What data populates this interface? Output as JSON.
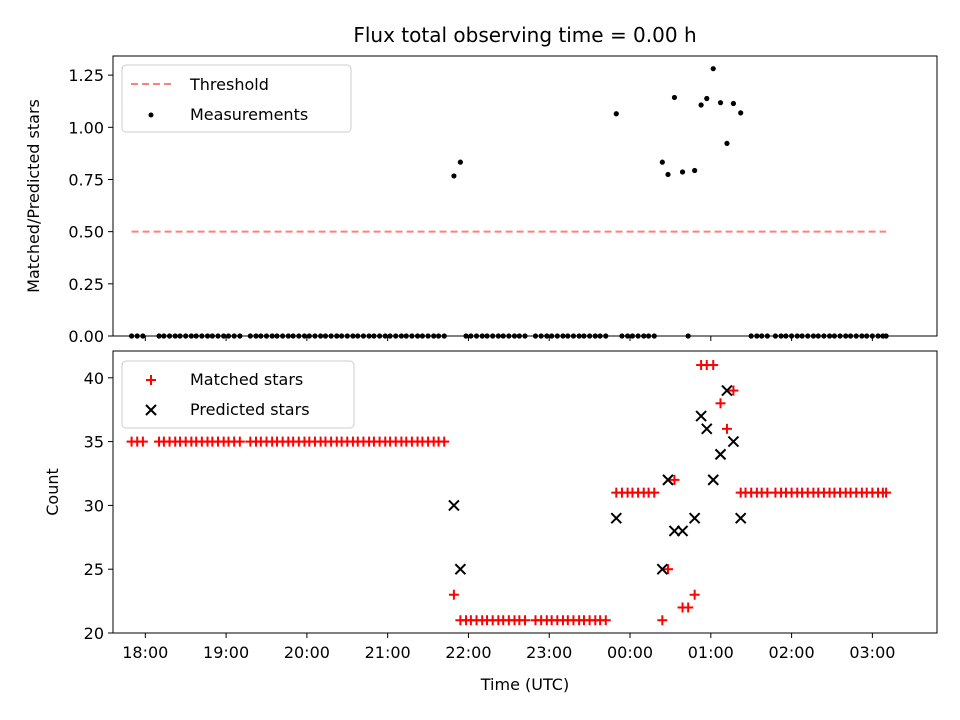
{
  "chart_data": [
    {
      "type": "line+scatter",
      "title": "Flux total observing time = 0.00 h",
      "ylabel": "Matched/Predicted stars",
      "xlabel": "",
      "xlim": [
        17.6,
        27.8
      ],
      "ylim": [
        0.0,
        1.3417
      ],
      "yticks": [
        0.0,
        0.25,
        0.5,
        0.75,
        1.0,
        1.25
      ],
      "ytick_labels": [
        "0.00",
        "0.25",
        "0.50",
        "0.75",
        "1.00",
        "1.25"
      ],
      "xticks": [
        18,
        19,
        20,
        21,
        22,
        23,
        24,
        25,
        26,
        27
      ],
      "legend_position": "upper-left",
      "threshold": {
        "name": "Threshold",
        "color": "#ff7f7f",
        "x": [
          17.83,
          27.17
        ],
        "y": [
          0.5,
          0.5
        ]
      },
      "measurements": {
        "name": "Measurements",
        "color": "#000000",
        "points": [
          [
            17.83,
            0
          ],
          [
            17.9,
            0
          ],
          [
            17.97,
            0
          ],
          [
            18.17,
            0
          ],
          [
            18.23,
            0
          ],
          [
            18.3,
            0
          ],
          [
            18.37,
            0
          ],
          [
            18.43,
            0
          ],
          [
            18.5,
            0
          ],
          [
            18.57,
            0
          ],
          [
            18.63,
            0
          ],
          [
            18.7,
            0
          ],
          [
            18.77,
            0
          ],
          [
            18.83,
            0
          ],
          [
            18.9,
            0
          ],
          [
            18.97,
            0
          ],
          [
            19.03,
            0
          ],
          [
            19.1,
            0
          ],
          [
            19.17,
            0
          ],
          [
            19.3,
            0
          ],
          [
            19.37,
            0
          ],
          [
            19.43,
            0
          ],
          [
            19.5,
            0
          ],
          [
            19.57,
            0
          ],
          [
            19.63,
            0
          ],
          [
            19.7,
            0
          ],
          [
            19.77,
            0
          ],
          [
            19.83,
            0
          ],
          [
            19.9,
            0
          ],
          [
            19.97,
            0
          ],
          [
            20.03,
            0
          ],
          [
            20.1,
            0
          ],
          [
            20.17,
            0
          ],
          [
            20.23,
            0
          ],
          [
            20.3,
            0
          ],
          [
            20.37,
            0
          ],
          [
            20.43,
            0
          ],
          [
            20.5,
            0
          ],
          [
            20.57,
            0
          ],
          [
            20.63,
            0
          ],
          [
            20.7,
            0
          ],
          [
            20.77,
            0
          ],
          [
            20.83,
            0
          ],
          [
            20.9,
            0
          ],
          [
            20.97,
            0
          ],
          [
            21.03,
            0
          ],
          [
            21.1,
            0
          ],
          [
            21.17,
            0
          ],
          [
            21.23,
            0
          ],
          [
            21.3,
            0
          ],
          [
            21.37,
            0
          ],
          [
            21.43,
            0
          ],
          [
            21.5,
            0
          ],
          [
            21.57,
            0
          ],
          [
            21.63,
            0
          ],
          [
            21.7,
            0
          ],
          [
            21.82,
            0.767
          ],
          [
            21.9,
            0.833
          ],
          [
            21.97,
            0
          ],
          [
            22.03,
            0
          ],
          [
            22.1,
            0
          ],
          [
            22.17,
            0
          ],
          [
            22.23,
            0
          ],
          [
            22.3,
            0
          ],
          [
            22.37,
            0
          ],
          [
            22.43,
            0
          ],
          [
            22.5,
            0
          ],
          [
            22.57,
            0
          ],
          [
            22.63,
            0
          ],
          [
            22.7,
            0
          ],
          [
            22.83,
            0
          ],
          [
            22.9,
            0
          ],
          [
            22.97,
            0
          ],
          [
            23.03,
            0
          ],
          [
            23.1,
            0
          ],
          [
            23.17,
            0
          ],
          [
            23.23,
            0
          ],
          [
            23.3,
            0
          ],
          [
            23.37,
            0
          ],
          [
            23.43,
            0
          ],
          [
            23.5,
            0
          ],
          [
            23.57,
            0
          ],
          [
            23.63,
            0
          ],
          [
            23.7,
            0
          ],
          [
            23.83,
            1.065
          ],
          [
            23.9,
            0
          ],
          [
            23.97,
            0
          ],
          [
            24.03,
            0
          ],
          [
            24.1,
            0
          ],
          [
            24.17,
            0
          ],
          [
            24.23,
            0
          ],
          [
            24.3,
            0
          ],
          [
            24.4,
            0.833
          ],
          [
            24.47,
            0.774
          ],
          [
            24.55,
            1.143
          ],
          [
            24.65,
            0.786
          ],
          [
            24.72,
            0
          ],
          [
            24.8,
            0.793
          ],
          [
            24.88,
            1.107
          ],
          [
            24.95,
            1.138
          ],
          [
            25.03,
            1.281
          ],
          [
            25.12,
            1.118
          ],
          [
            25.2,
            0.923
          ],
          [
            25.28,
            1.114
          ],
          [
            25.37,
            1.069
          ],
          [
            25.5,
            0
          ],
          [
            25.57,
            0
          ],
          [
            25.63,
            0
          ],
          [
            25.7,
            0
          ],
          [
            25.8,
            0
          ],
          [
            25.87,
            0
          ],
          [
            25.93,
            0
          ],
          [
            26.0,
            0
          ],
          [
            26.07,
            0
          ],
          [
            26.13,
            0
          ],
          [
            26.2,
            0
          ],
          [
            26.27,
            0
          ],
          [
            26.33,
            0
          ],
          [
            26.4,
            0
          ],
          [
            26.47,
            0
          ],
          [
            26.53,
            0
          ],
          [
            26.6,
            0
          ],
          [
            26.67,
            0
          ],
          [
            26.73,
            0
          ],
          [
            26.8,
            0
          ],
          [
            26.87,
            0
          ],
          [
            26.93,
            0
          ],
          [
            27.0,
            0
          ],
          [
            27.07,
            0
          ],
          [
            27.13,
            0
          ],
          [
            27.17,
            0
          ]
        ]
      }
    },
    {
      "type": "scatter",
      "title": "",
      "ylabel": "Count",
      "xlabel": "Time (UTC)",
      "xlim": [
        17.6,
        27.8
      ],
      "ylim": [
        20,
        42.1
      ],
      "yticks": [
        20,
        25,
        30,
        35,
        40
      ],
      "ytick_labels": [
        "20",
        "25",
        "30",
        "35",
        "40"
      ],
      "xticks": [
        18,
        19,
        20,
        21,
        22,
        23,
        24,
        25,
        26,
        27
      ],
      "xtick_labels": [
        "18:00",
        "19:00",
        "20:00",
        "21:00",
        "22:00",
        "23:00",
        "00:00",
        "01:00",
        "02:00",
        "03:00"
      ],
      "legend_position": "upper-left",
      "series": [
        {
          "name": "Matched stars",
          "marker": "plus",
          "color": "#ff0000",
          "points": [
            [
              17.83,
              35
            ],
            [
              17.9,
              35
            ],
            [
              17.97,
              35
            ],
            [
              18.17,
              35
            ],
            [
              18.23,
              35
            ],
            [
              18.3,
              35
            ],
            [
              18.37,
              35
            ],
            [
              18.43,
              35
            ],
            [
              18.5,
              35
            ],
            [
              18.57,
              35
            ],
            [
              18.63,
              35
            ],
            [
              18.7,
              35
            ],
            [
              18.77,
              35
            ],
            [
              18.83,
              35
            ],
            [
              18.9,
              35
            ],
            [
              18.97,
              35
            ],
            [
              19.03,
              35
            ],
            [
              19.1,
              35
            ],
            [
              19.17,
              35
            ],
            [
              19.3,
              35
            ],
            [
              19.37,
              35
            ],
            [
              19.43,
              35
            ],
            [
              19.5,
              35
            ],
            [
              19.57,
              35
            ],
            [
              19.63,
              35
            ],
            [
              19.7,
              35
            ],
            [
              19.77,
              35
            ],
            [
              19.83,
              35
            ],
            [
              19.9,
              35
            ],
            [
              19.97,
              35
            ],
            [
              20.03,
              35
            ],
            [
              20.1,
              35
            ],
            [
              20.17,
              35
            ],
            [
              20.23,
              35
            ],
            [
              20.3,
              35
            ],
            [
              20.37,
              35
            ],
            [
              20.43,
              35
            ],
            [
              20.5,
              35
            ],
            [
              20.57,
              35
            ],
            [
              20.63,
              35
            ],
            [
              20.7,
              35
            ],
            [
              20.77,
              35
            ],
            [
              20.83,
              35
            ],
            [
              20.9,
              35
            ],
            [
              20.97,
              35
            ],
            [
              21.03,
              35
            ],
            [
              21.1,
              35
            ],
            [
              21.17,
              35
            ],
            [
              21.23,
              35
            ],
            [
              21.3,
              35
            ],
            [
              21.37,
              35
            ],
            [
              21.43,
              35
            ],
            [
              21.5,
              35
            ],
            [
              21.57,
              35
            ],
            [
              21.63,
              35
            ],
            [
              21.7,
              35
            ],
            [
              21.82,
              23
            ],
            [
              21.9,
              21
            ],
            [
              21.97,
              21
            ],
            [
              22.03,
              21
            ],
            [
              22.1,
              21
            ],
            [
              22.17,
              21
            ],
            [
              22.23,
              21
            ],
            [
              22.3,
              21
            ],
            [
              22.37,
              21
            ],
            [
              22.43,
              21
            ],
            [
              22.5,
              21
            ],
            [
              22.57,
              21
            ],
            [
              22.63,
              21
            ],
            [
              22.7,
              21
            ],
            [
              22.83,
              21
            ],
            [
              22.9,
              21
            ],
            [
              22.97,
              21
            ],
            [
              23.03,
              21
            ],
            [
              23.1,
              21
            ],
            [
              23.17,
              21
            ],
            [
              23.23,
              21
            ],
            [
              23.3,
              21
            ],
            [
              23.37,
              21
            ],
            [
              23.43,
              21
            ],
            [
              23.5,
              21
            ],
            [
              23.57,
              21
            ],
            [
              23.63,
              21
            ],
            [
              23.7,
              21
            ],
            [
              23.83,
              31
            ],
            [
              23.9,
              31
            ],
            [
              23.97,
              31
            ],
            [
              24.03,
              31
            ],
            [
              24.1,
              31
            ],
            [
              24.17,
              31
            ],
            [
              24.23,
              31
            ],
            [
              24.3,
              31
            ],
            [
              24.4,
              21
            ],
            [
              24.47,
              25
            ],
            [
              24.55,
              32
            ],
            [
              24.65,
              22
            ],
            [
              24.72,
              22
            ],
            [
              24.8,
              23
            ],
            [
              24.88,
              41
            ],
            [
              24.95,
              41
            ],
            [
              25.03,
              41
            ],
            [
              25.12,
              38
            ],
            [
              25.2,
              36
            ],
            [
              25.28,
              39
            ],
            [
              25.37,
              31
            ],
            [
              25.43,
              31
            ],
            [
              25.5,
              31
            ],
            [
              25.57,
              31
            ],
            [
              25.63,
              31
            ],
            [
              25.7,
              31
            ],
            [
              25.8,
              31
            ],
            [
              25.87,
              31
            ],
            [
              25.93,
              31
            ],
            [
              26.0,
              31
            ],
            [
              26.07,
              31
            ],
            [
              26.13,
              31
            ],
            [
              26.2,
              31
            ],
            [
              26.27,
              31
            ],
            [
              26.33,
              31
            ],
            [
              26.4,
              31
            ],
            [
              26.47,
              31
            ],
            [
              26.53,
              31
            ],
            [
              26.6,
              31
            ],
            [
              26.67,
              31
            ],
            [
              26.73,
              31
            ],
            [
              26.8,
              31
            ],
            [
              26.87,
              31
            ],
            [
              26.93,
              31
            ],
            [
              27.0,
              31
            ],
            [
              27.07,
              31
            ],
            [
              27.13,
              31
            ],
            [
              27.17,
              31
            ]
          ]
        },
        {
          "name": "Predicted stars",
          "marker": "x",
          "color": "#000000",
          "points": [
            [
              21.82,
              30
            ],
            [
              21.9,
              25
            ],
            [
              23.83,
              29
            ],
            [
              24.4,
              25
            ],
            [
              24.47,
              32
            ],
            [
              24.55,
              28
            ],
            [
              24.65,
              28
            ],
            [
              24.8,
              29
            ],
            [
              24.88,
              37
            ],
            [
              24.95,
              36
            ],
            [
              25.03,
              32
            ],
            [
              25.12,
              34
            ],
            [
              25.2,
              39
            ],
            [
              25.28,
              35
            ],
            [
              25.37,
              29
            ]
          ]
        }
      ]
    }
  ]
}
